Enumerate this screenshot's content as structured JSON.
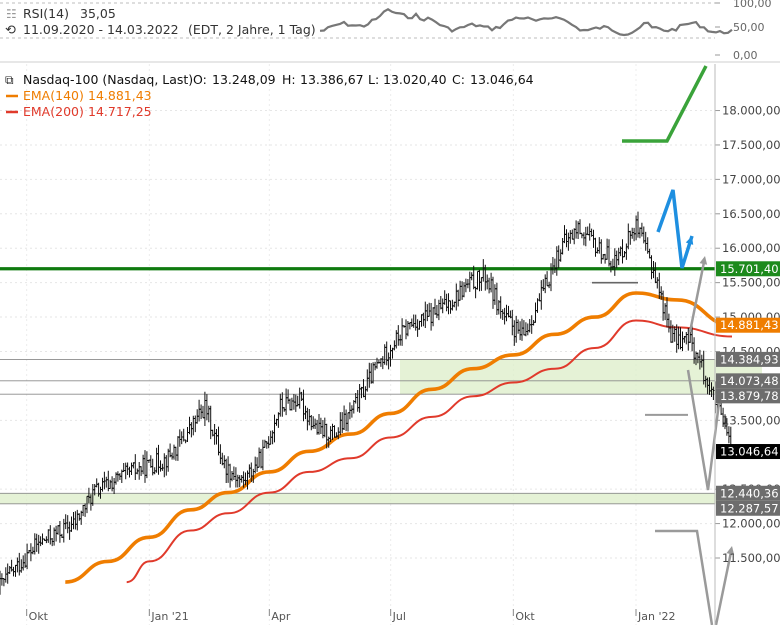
{
  "rsi_panel": {
    "title": "RSI(14)",
    "value": "35,05",
    "period": "11.09.2020 - 14.03.2022",
    "info": "(EDT, 2 Jahre, 1 Tag)",
    "ticks": [
      "100,00",
      "50,00",
      "0,00"
    ]
  },
  "price_panel": {
    "title": "Nasdaq-100 (Nasdaq, Last)",
    "ohlc": {
      "O": "13.248,09",
      "H": "13.386,67",
      "L": "13.020,40",
      "C": "13.046,64"
    },
    "legend": [
      {
        "name": "EMA(140)",
        "value": "14.881,43",
        "color": "#ef7d00"
      },
      {
        "name": "EMA(200)",
        "value": "14.717,25",
        "color": "#e03a2b"
      }
    ],
    "price_labels": [
      {
        "text": "15.701,40",
        "bg": "#1c8a1c",
        "value": 15701.4
      },
      {
        "text": "14.881,43",
        "bg": "#ef7d00",
        "value": 14881.43
      },
      {
        "text": "14.384,93",
        "bg": "#6d6d6d",
        "value": 14384.93
      },
      {
        "text": "14.073,48",
        "bg": "#6d6d6d",
        "value": 14073.48
      },
      {
        "text": "13.879,78",
        "bg": "#6d6d6d",
        "value": 13879.78
      },
      {
        "text": "13.046,64",
        "bg": "#000000",
        "value": 13046.64
      },
      {
        "text": "12.440,36",
        "bg": "#6d6d6d",
        "value": 12440.36
      },
      {
        "text": "12.287,57",
        "bg": "#6d6d6d",
        "value": 12287.57
      }
    ]
  },
  "colors": {
    "price": "#111111",
    "ema140": "#ef7d00",
    "ema200": "#e03a2b",
    "support_band": "#dcedc8",
    "resistance_line": "#0e7a0e",
    "arrow_green": "#3aa33a",
    "arrow_blue": "#1e8fe0",
    "arrow_grey": "#9a9a9a"
  },
  "chart_data": {
    "type": "line",
    "title": "Nasdaq-100 (Nasdaq, Last)",
    "x_ticks": [
      "Okt",
      "Jan '21",
      "Apr",
      "Jul",
      "Okt",
      "Jan '22"
    ],
    "y_ticks": [
      "11.500,00",
      "12.000,00",
      "12.500,00",
      "13.500,00",
      "14.500,00",
      "15.000,00",
      "15.500,00",
      "16.000,00",
      "16.500,00",
      "17.000,00",
      "17.500,00",
      "18.000,00"
    ],
    "ylim": [
      11200,
      18150
    ],
    "grid": true,
    "series": [
      {
        "name": "Nasdaq-100",
        "x": [
          "2020-09-11",
          "2020-09-25",
          "2020-10-09",
          "2020-10-23",
          "2020-11-06",
          "2020-11-20",
          "2020-12-04",
          "2020-12-18",
          "2021-01-01",
          "2021-01-15",
          "2021-01-29",
          "2021-02-12",
          "2021-02-26",
          "2021-03-12",
          "2021-03-26",
          "2021-04-09",
          "2021-04-23",
          "2021-05-07",
          "2021-05-21",
          "2021-06-04",
          "2021-06-18",
          "2021-07-02",
          "2021-07-16",
          "2021-07-30",
          "2021-08-13",
          "2021-08-27",
          "2021-09-10",
          "2021-09-24",
          "2021-10-08",
          "2021-10-22",
          "2021-11-05",
          "2021-11-19",
          "2021-12-03",
          "2021-12-17",
          "2021-12-31",
          "2022-01-14",
          "2022-01-28",
          "2022-02-11",
          "2022-02-25",
          "2022-03-14"
        ],
        "values": [
          11100,
          11400,
          11700,
          11850,
          12000,
          12450,
          12600,
          12750,
          12850,
          12950,
          13300,
          13700,
          12850,
          12600,
          12950,
          13700,
          13800,
          13350,
          13300,
          13700,
          14200,
          14600,
          14900,
          15000,
          15200,
          15450,
          15600,
          15000,
          14700,
          15300,
          16000,
          16300,
          16000,
          15800,
          16350,
          15700,
          14700,
          14650,
          14000,
          13046
        ]
      },
      {
        "name": "EMA(140)",
        "x": [
          "2020-10-30",
          "2020-12-01",
          "2021-01-01",
          "2021-02-01",
          "2021-03-01",
          "2021-04-01",
          "2021-05-01",
          "2021-06-01",
          "2021-07-01",
          "2021-08-01",
          "2021-09-01",
          "2021-10-01",
          "2021-11-01",
          "2021-12-01",
          "2022-01-01",
          "2022-02-01",
          "2022-03-14"
        ],
        "values": [
          11150,
          11450,
          11800,
          12200,
          12450,
          12750,
          13050,
          13300,
          13600,
          13950,
          14250,
          14450,
          14750,
          15000,
          15350,
          15250,
          14881
        ]
      },
      {
        "name": "EMA(200)",
        "x": [
          "2020-12-15",
          "2021-01-01",
          "2021-02-01",
          "2021-03-01",
          "2021-04-01",
          "2021-05-01",
          "2021-06-01",
          "2021-07-01",
          "2021-08-01",
          "2021-09-01",
          "2021-10-01",
          "2021-11-01",
          "2021-12-01",
          "2022-01-01",
          "2022-02-01",
          "2022-03-14"
        ],
        "values": [
          11150,
          11450,
          11900,
          12150,
          12450,
          12750,
          12950,
          13250,
          13550,
          13850,
          14050,
          14250,
          14550,
          14950,
          14850,
          14717
        ]
      }
    ],
    "horizontal_levels": [
      15701.4,
      14384.93,
      14073.48,
      13879.78,
      12440.36,
      12287.57
    ]
  }
}
